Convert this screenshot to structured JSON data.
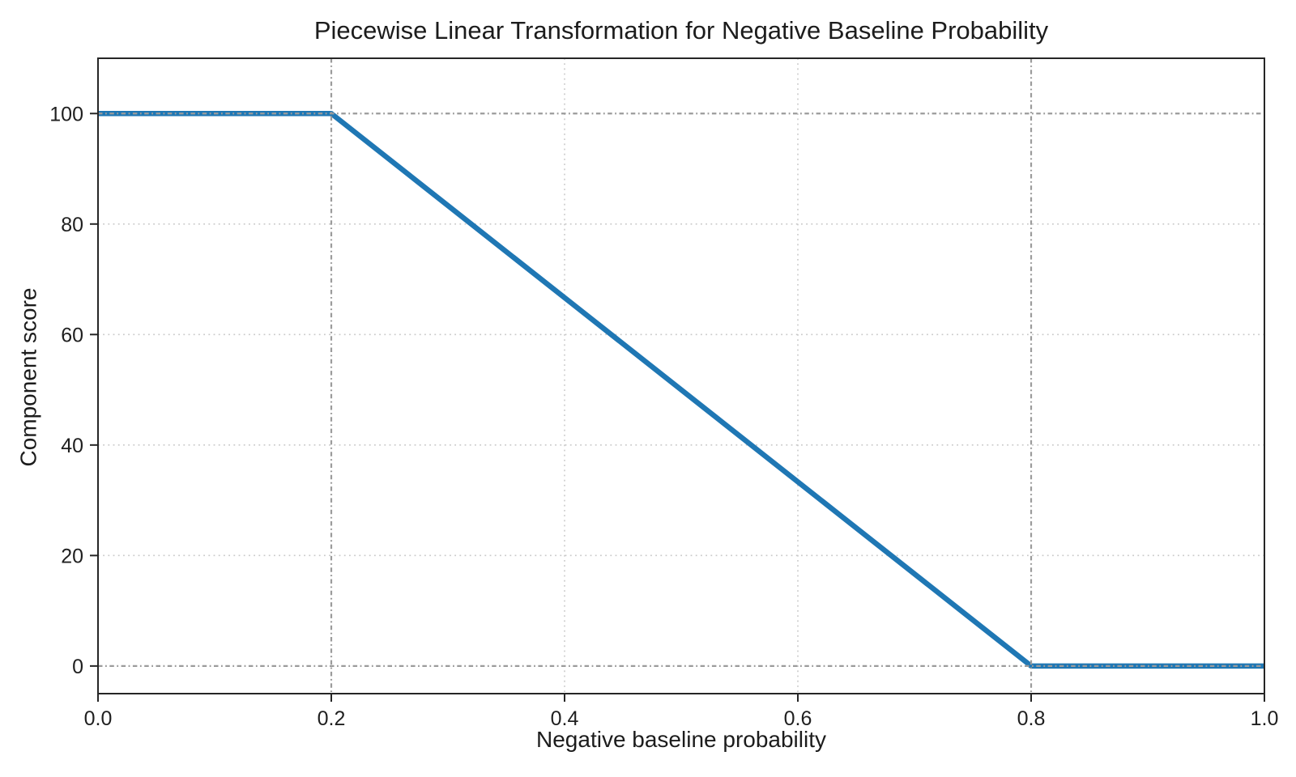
{
  "chart_data": {
    "type": "line",
    "title": "Piecewise Linear Transformation for Negative Baseline Probability",
    "xlabel": "Negative baseline probability",
    "ylabel": "Component score",
    "xlim": [
      0.0,
      1.0
    ],
    "ylim": [
      -5,
      110
    ],
    "xticks": [
      0.0,
      0.2,
      0.4,
      0.6,
      0.8,
      1.0
    ],
    "xtick_labels": [
      "0.0",
      "0.2",
      "0.4",
      "0.6",
      "0.8",
      "1.0"
    ],
    "yticks": [
      0,
      20,
      40,
      60,
      80,
      100
    ],
    "ytick_labels": [
      "0",
      "20",
      "40",
      "60",
      "80",
      "100"
    ],
    "series": [
      {
        "name": "component-score",
        "color": "#1f77b4",
        "linewidth": 6.5,
        "points": [
          [
            0.0,
            100
          ],
          [
            0.2,
            100
          ],
          [
            0.8,
            0
          ],
          [
            1.0,
            0
          ]
        ]
      }
    ],
    "breakpoints": {
      "x": [
        0.2,
        0.8
      ],
      "y": [
        0,
        100
      ]
    },
    "grid": {
      "light": {
        "x": [
          0.4,
          0.6
        ],
        "y": [
          20,
          40,
          60,
          80
        ],
        "color": "#c9c9c9",
        "style": "dotted"
      },
      "key": {
        "x": [
          0.2,
          0.8
        ],
        "y": [
          0,
          100
        ],
        "color": "#9b9b9b",
        "style": "dash-dot"
      }
    },
    "legend": false,
    "grid_on": true,
    "spine_color": "#262626",
    "tick_color": "#262626",
    "text_color": "#1f1f1f",
    "background": "#ffffff"
  }
}
